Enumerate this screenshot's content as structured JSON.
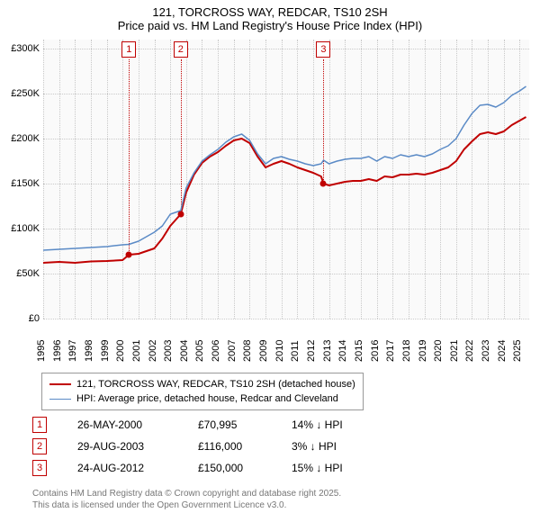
{
  "title": {
    "line1": "121, TORCROSS WAY, REDCAR, TS10 2SH",
    "line2": "Price paid vs. HM Land Registry's House Price Index (HPI)"
  },
  "chart": {
    "type": "line",
    "background_color": "#fafafa",
    "grid_color": "#c8c8c8",
    "y": {
      "min": 0,
      "max": 310000,
      "ticks": [
        0,
        50000,
        100000,
        150000,
        200000,
        250000,
        300000
      ],
      "labels": [
        "£0",
        "£50K",
        "£100K",
        "£150K",
        "£200K",
        "£250K",
        "£300K"
      ],
      "label_fontsize": 11
    },
    "x": {
      "min": 1995,
      "max": 2025.6,
      "ticks": [
        1995,
        1996,
        1997,
        1998,
        1999,
        2000,
        2001,
        2002,
        2003,
        2004,
        2005,
        2006,
        2007,
        2008,
        2009,
        2010,
        2011,
        2012,
        2013,
        2014,
        2015,
        2016,
        2017,
        2018,
        2019,
        2020,
        2021,
        2022,
        2023,
        2024,
        2025
      ],
      "labels": [
        "1995",
        "1996",
        "1997",
        "1998",
        "1999",
        "2000",
        "2001",
        "2002",
        "2003",
        "2004",
        "2005",
        "2006",
        "2007",
        "2008",
        "2009",
        "2010",
        "2011",
        "2012",
        "2013",
        "2014",
        "2015",
        "2016",
        "2017",
        "2018",
        "2019",
        "2020",
        "2021",
        "2022",
        "2023",
        "2024",
        "2025"
      ],
      "label_fontsize": 11
    },
    "series": [
      {
        "name": "price_paid",
        "color": "#c00000",
        "line_width": 2,
        "points": [
          [
            1995,
            62000
          ],
          [
            1996,
            63000
          ],
          [
            1997,
            62000
          ],
          [
            1998,
            63500
          ],
          [
            1999,
            64000
          ],
          [
            2000,
            65000
          ],
          [
            2000.4,
            70995
          ],
          [
            2001,
            72000
          ],
          [
            2002,
            78000
          ],
          [
            2002.5,
            89000
          ],
          [
            2003,
            103000
          ],
          [
            2003.66,
            116000
          ],
          [
            2004,
            140000
          ],
          [
            2004.5,
            160000
          ],
          [
            2005,
            173000
          ],
          [
            2005.5,
            180000
          ],
          [
            2006,
            185000
          ],
          [
            2006.5,
            192000
          ],
          [
            2007,
            198000
          ],
          [
            2007.5,
            200000
          ],
          [
            2008,
            195000
          ],
          [
            2008.5,
            180000
          ],
          [
            2009,
            168000
          ],
          [
            2009.5,
            172000
          ],
          [
            2010,
            175000
          ],
          [
            2010.5,
            172000
          ],
          [
            2011,
            168000
          ],
          [
            2011.5,
            165000
          ],
          [
            2012,
            162000
          ],
          [
            2012.5,
            158000
          ],
          [
            2012.65,
            150000
          ],
          [
            2013,
            148000
          ],
          [
            2013.5,
            150000
          ],
          [
            2014,
            152000
          ],
          [
            2014.5,
            153000
          ],
          [
            2015,
            153000
          ],
          [
            2015.5,
            155000
          ],
          [
            2016,
            153000
          ],
          [
            2016.5,
            158000
          ],
          [
            2017,
            157000
          ],
          [
            2017.5,
            160000
          ],
          [
            2018,
            160000
          ],
          [
            2018.5,
            161000
          ],
          [
            2019,
            160000
          ],
          [
            2019.5,
            162000
          ],
          [
            2020,
            165000
          ],
          [
            2020.5,
            168000
          ],
          [
            2021,
            175000
          ],
          [
            2021.5,
            188000
          ],
          [
            2022,
            197000
          ],
          [
            2022.5,
            205000
          ],
          [
            2023,
            207000
          ],
          [
            2023.5,
            205000
          ],
          [
            2024,
            208000
          ],
          [
            2024.5,
            215000
          ],
          [
            2025,
            220000
          ],
          [
            2025.4,
            224000
          ]
        ]
      },
      {
        "name": "hpi",
        "color": "#5a8ac6",
        "line_width": 1.5,
        "points": [
          [
            1995,
            76000
          ],
          [
            1996,
            77000
          ],
          [
            1997,
            78000
          ],
          [
            1998,
            79000
          ],
          [
            1999,
            80000
          ],
          [
            2000,
            82000
          ],
          [
            2000.4,
            82500
          ],
          [
            2001,
            86000
          ],
          [
            2002,
            96000
          ],
          [
            2002.5,
            103000
          ],
          [
            2003,
            116000
          ],
          [
            2003.66,
            120000
          ],
          [
            2004,
            145000
          ],
          [
            2004.5,
            162000
          ],
          [
            2005,
            175000
          ],
          [
            2005.5,
            182000
          ],
          [
            2006,
            188000
          ],
          [
            2006.5,
            196000
          ],
          [
            2007,
            202000
          ],
          [
            2007.5,
            205000
          ],
          [
            2008,
            198000
          ],
          [
            2008.5,
            183000
          ],
          [
            2009,
            172000
          ],
          [
            2009.5,
            178000
          ],
          [
            2010,
            180000
          ],
          [
            2010.5,
            177000
          ],
          [
            2011,
            175000
          ],
          [
            2011.5,
            172000
          ],
          [
            2012,
            170000
          ],
          [
            2012.5,
            172000
          ],
          [
            2012.65,
            176000
          ],
          [
            2013,
            172000
          ],
          [
            2013.5,
            175000
          ],
          [
            2014,
            177000
          ],
          [
            2014.5,
            178000
          ],
          [
            2015,
            178000
          ],
          [
            2015.5,
            180000
          ],
          [
            2016,
            175000
          ],
          [
            2016.5,
            180000
          ],
          [
            2017,
            178000
          ],
          [
            2017.5,
            182000
          ],
          [
            2018,
            180000
          ],
          [
            2018.5,
            182000
          ],
          [
            2019,
            180000
          ],
          [
            2019.5,
            183000
          ],
          [
            2020,
            188000
          ],
          [
            2020.5,
            192000
          ],
          [
            2021,
            200000
          ],
          [
            2021.5,
            215000
          ],
          [
            2022,
            228000
          ],
          [
            2022.5,
            237000
          ],
          [
            2023,
            238000
          ],
          [
            2023.5,
            235000
          ],
          [
            2024,
            240000
          ],
          [
            2024.5,
            248000
          ],
          [
            2025,
            253000
          ],
          [
            2025.4,
            258000
          ]
        ]
      }
    ],
    "sale_markers": [
      {
        "n": "1",
        "year": 2000.4,
        "price": 70995
      },
      {
        "n": "2",
        "year": 2003.66,
        "price": 116000
      },
      {
        "n": "3",
        "year": 2012.65,
        "price": 150000
      }
    ]
  },
  "legend": {
    "items": [
      {
        "color": "#c00000",
        "width": 2,
        "label": "121, TORCROSS WAY, REDCAR, TS10 2SH (detached house)"
      },
      {
        "color": "#5a8ac6",
        "width": 1.5,
        "label": "HPI: Average price, detached house, Redcar and Cleveland"
      }
    ]
  },
  "sales": [
    {
      "n": "1",
      "date": "26-MAY-2000",
      "price": "£70,995",
      "diff": "14% ↓ HPI"
    },
    {
      "n": "2",
      "date": "29-AUG-2003",
      "price": "£116,000",
      "diff": "3% ↓ HPI"
    },
    {
      "n": "3",
      "date": "24-AUG-2012",
      "price": "£150,000",
      "diff": "15% ↓ HPI"
    }
  ],
  "attribution": {
    "line1": "Contains HM Land Registry data © Crown copyright and database right 2025.",
    "line2": "This data is licensed under the Open Government Licence v3.0."
  }
}
